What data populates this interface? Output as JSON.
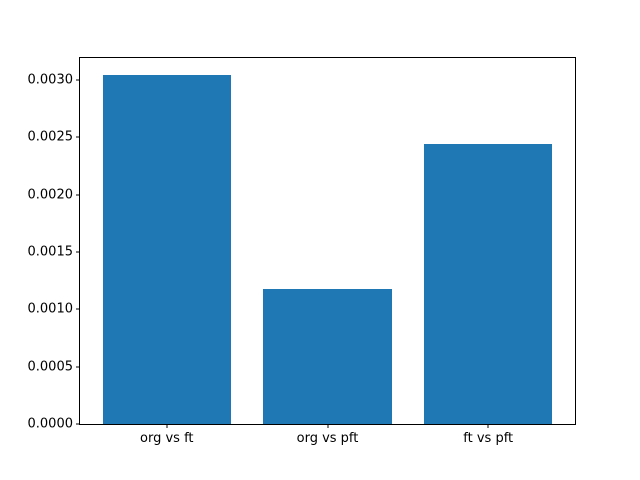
{
  "chart_data": {
    "type": "bar",
    "title": "",
    "xlabel": "",
    "ylabel": "",
    "categories": [
      "org vs ft",
      "org vs pft",
      "ft vs pft"
    ],
    "values": [
      0.00304,
      0.00118,
      0.00244
    ],
    "ylim": [
      0,
      0.00319
    ],
    "xlim": [
      -0.54,
      2.54
    ],
    "bar_width": 0.8,
    "bar_color": "#1f77b4",
    "ytick_values": [
      0.0,
      0.0005,
      0.001,
      0.0015,
      0.002,
      0.0025,
      0.003
    ],
    "ytick_labels": [
      "0.0000",
      "0.0005",
      "0.0010",
      "0.0015",
      "0.0020",
      "0.0025",
      "0.0030"
    ],
    "grid": false,
    "legend": "none",
    "spines": "all-four",
    "background": "#ffffff"
  }
}
